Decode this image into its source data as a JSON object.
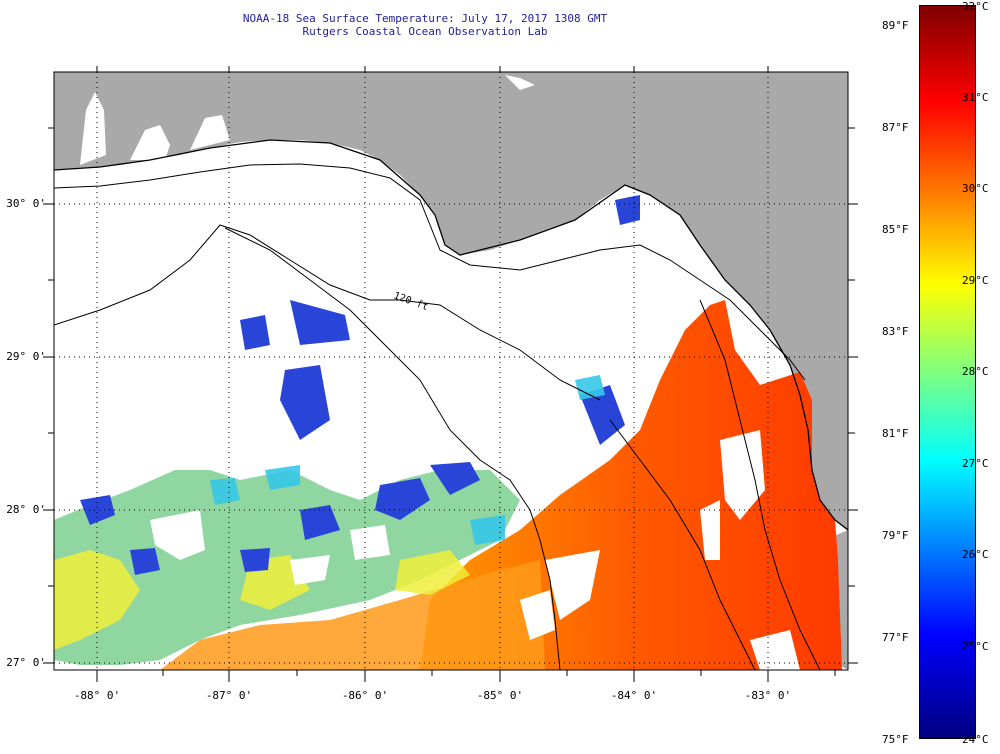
{
  "header": {
    "title_line1": "NOAA-18 Sea Surface Temperature:  July 17, 2017 1308 GMT",
    "title_line2": "Rutgers Coastal Ocean Observation Lab"
  },
  "map": {
    "region": "Gulf of Mexico - Florida Big Bend / Panhandle",
    "isobath_label": "120 ft",
    "lat_labels": [
      "30° 0'",
      "29° 0'",
      "28° 0'",
      "27° 0'"
    ],
    "lon_labels": [
      "-88° 0'",
      "-87° 0'",
      "-86° 0'",
      "-85° 0'",
      "-84° 0'",
      "-83° 0'"
    ],
    "colors": {
      "land": "#a9a9a9",
      "cloud_mask": "#ffffff",
      "grid": "#000000"
    }
  },
  "colorbar": {
    "fahrenheit_labels": [
      "89°F",
      "87°F",
      "85°F",
      "83°F",
      "81°F",
      "79°F",
      "77°F",
      "75°F"
    ],
    "celsius_labels": [
      "32°C",
      "31°C",
      "30°C",
      "29°C",
      "28°C",
      "27°C",
      "26°C",
      "25°C",
      "24°C"
    ],
    "range_c": [
      24,
      32
    ],
    "colors": [
      "#00007f",
      "#0000ff",
      "#007fff",
      "#00ffff",
      "#7fff7f",
      "#ffff00",
      "#ff7f00",
      "#ff0000",
      "#7f0000"
    ]
  }
}
